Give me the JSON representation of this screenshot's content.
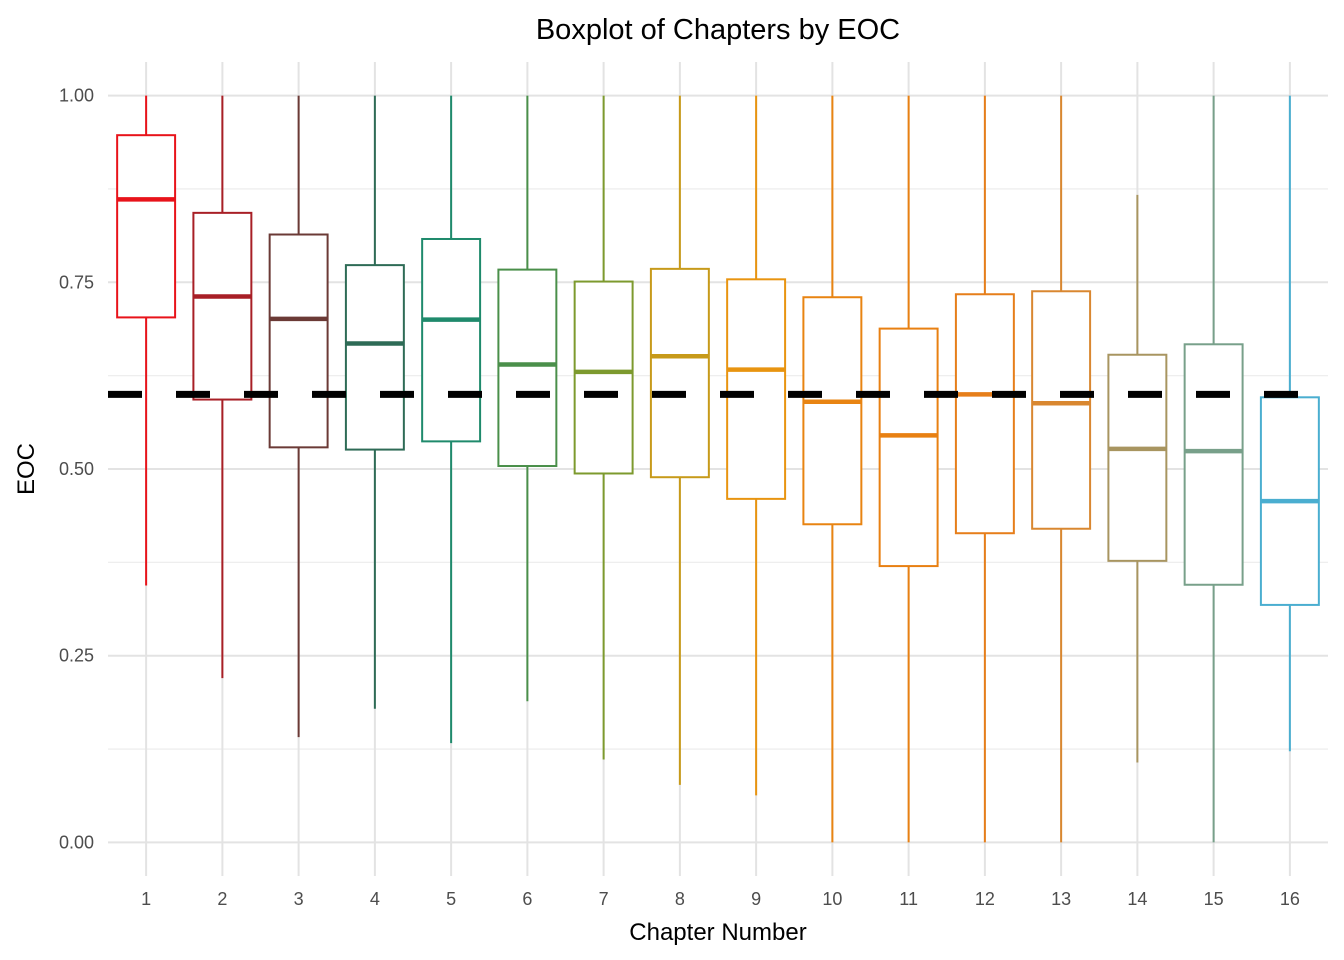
{
  "chart_data": {
    "type": "boxplot",
    "title": "Boxplot of Chapters by EOC",
    "xlabel": "Chapter Number",
    "ylabel": "EOC",
    "ylim": [
      -0.045,
      1.045
    ],
    "y_ticks": [
      "0.00",
      "0.25",
      "0.50",
      "0.75",
      "1.00"
    ],
    "y_tick_values": [
      0,
      0.25,
      0.5,
      0.75,
      1.0
    ],
    "grid": true,
    "reference_line": {
      "y": 0.6,
      "style": "dashed",
      "color": "#000000"
    },
    "categories": [
      "1",
      "2",
      "3",
      "4",
      "5",
      "6",
      "7",
      "8",
      "9",
      "10",
      "11",
      "12",
      "13",
      "14",
      "15",
      "16"
    ],
    "boxes": [
      {
        "x": "1",
        "min": 0.344,
        "q1": 0.703,
        "median": 0.861,
        "q3": 0.947,
        "max": 1.0,
        "color": "#e8131a"
      },
      {
        "x": "2",
        "min": 0.22,
        "q1": 0.593,
        "median": 0.731,
        "q3": 0.843,
        "max": 1.0,
        "color": "#a81f26"
      },
      {
        "x": "3",
        "min": 0.141,
        "q1": 0.529,
        "median": 0.701,
        "q3": 0.814,
        "max": 1.0,
        "color": "#6b3a36"
      },
      {
        "x": "4",
        "min": 0.179,
        "q1": 0.526,
        "median": 0.668,
        "q3": 0.773,
        "max": 1.0,
        "color": "#2e6b56"
      },
      {
        "x": "5",
        "min": 0.133,
        "q1": 0.537,
        "median": 0.7,
        "q3": 0.808,
        "max": 1.0,
        "color": "#1f8a6c"
      },
      {
        "x": "6",
        "min": 0.189,
        "q1": 0.504,
        "median": 0.64,
        "q3": 0.767,
        "max": 1.0,
        "color": "#4a8f4a"
      },
      {
        "x": "7",
        "min": 0.111,
        "q1": 0.494,
        "median": 0.63,
        "q3": 0.751,
        "max": 1.0,
        "color": "#7d9a2e"
      },
      {
        "x": "8",
        "min": 0.077,
        "q1": 0.489,
        "median": 0.651,
        "q3": 0.768,
        "max": 1.0,
        "color": "#c79a1a"
      },
      {
        "x": "9",
        "min": 0.063,
        "q1": 0.46,
        "median": 0.633,
        "q3": 0.754,
        "max": 1.0,
        "color": "#e89410"
      },
      {
        "x": "10",
        "min": 0.0,
        "q1": 0.426,
        "median": 0.59,
        "q3": 0.73,
        "max": 1.0,
        "color": "#e88412"
      },
      {
        "x": "11",
        "min": 0.0,
        "q1": 0.37,
        "median": 0.545,
        "q3": 0.688,
        "max": 1.0,
        "color": "#e88012"
      },
      {
        "x": "12",
        "min": 0.0,
        "q1": 0.414,
        "median": 0.6,
        "q3": 0.734,
        "max": 1.0,
        "color": "#e67e1a"
      },
      {
        "x": "13",
        "min": 0.0,
        "q1": 0.42,
        "median": 0.588,
        "q3": 0.738,
        "max": 1.0,
        "color": "#d98730"
      },
      {
        "x": "14",
        "min": 0.107,
        "q1": 0.377,
        "median": 0.527,
        "q3": 0.653,
        "max": 0.867,
        "color": "#a89560"
      },
      {
        "x": "15",
        "min": 0.0,
        "q1": 0.345,
        "median": 0.524,
        "q3": 0.667,
        "max": 1.0,
        "color": "#78a08a"
      },
      {
        "x": "16",
        "min": 0.122,
        "q1": 0.318,
        "median": 0.457,
        "q3": 0.596,
        "max": 1.0,
        "color": "#4aaed0"
      }
    ]
  }
}
